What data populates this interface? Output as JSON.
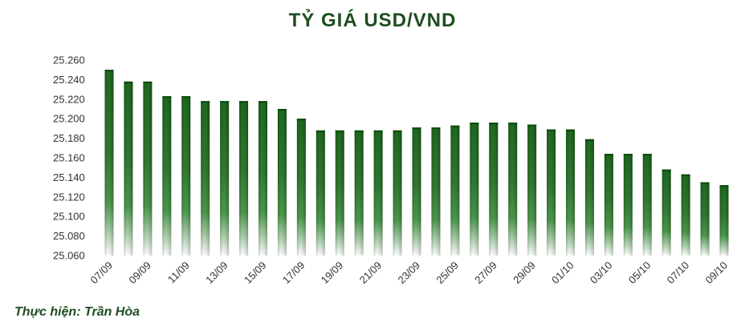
{
  "title": "TỶ GIÁ USD/VND",
  "credit": "Thực hiện: Trần Hòa",
  "colors": {
    "bar_top": "#0f5c0f",
    "bar_mid": "#2e7d2e",
    "title": "#1e4d1e"
  },
  "chart_data": {
    "type": "bar",
    "title": "TỶ GIÁ USD/VND",
    "xlabel": "",
    "ylabel": "",
    "ylim": [
      25060,
      25260
    ],
    "yticks": [
      "25.060",
      "25.080",
      "25.100",
      "25.120",
      "25.140",
      "25.160",
      "25.180",
      "25.200",
      "25.220",
      "25.240",
      "25.260"
    ],
    "categories": [
      "07/09",
      "08/09",
      "09/09",
      "10/09",
      "11/09",
      "12/09",
      "13/09",
      "14/09",
      "15/09",
      "16/09",
      "17/09",
      "18/09",
      "19/09",
      "20/09",
      "21/09",
      "22/09",
      "23/09",
      "24/09",
      "25/09",
      "26/09",
      "27/09",
      "28/09",
      "29/09",
      "30/09",
      "01/10",
      "02/10",
      "03/10",
      "04/10",
      "05/10",
      "06/10",
      "07/10",
      "08/10",
      "09/10"
    ],
    "xticklabels": [
      "07/09",
      "",
      "09/09",
      "",
      "11/09",
      "",
      "13/09",
      "",
      "15/09",
      "",
      "17/09",
      "",
      "19/09",
      "",
      "21/09",
      "",
      "23/09",
      "",
      "25/09",
      "",
      "27/09",
      "",
      "29/09",
      "",
      "01/10",
      "",
      "03/10",
      "",
      "05/10",
      "",
      "07/10",
      "",
      "09/10"
    ],
    "values": [
      25250,
      25238,
      25238,
      25223,
      25223,
      25218,
      25218,
      25218,
      25218,
      25210,
      25200,
      25188,
      25188,
      25188,
      25188,
      25188,
      25191,
      25191,
      25193,
      25196,
      25196,
      25196,
      25194,
      25189,
      25189,
      25179,
      25164,
      25164,
      25164,
      25148,
      25143,
      25135,
      25132
    ],
    "grid": false,
    "legend": "none"
  }
}
